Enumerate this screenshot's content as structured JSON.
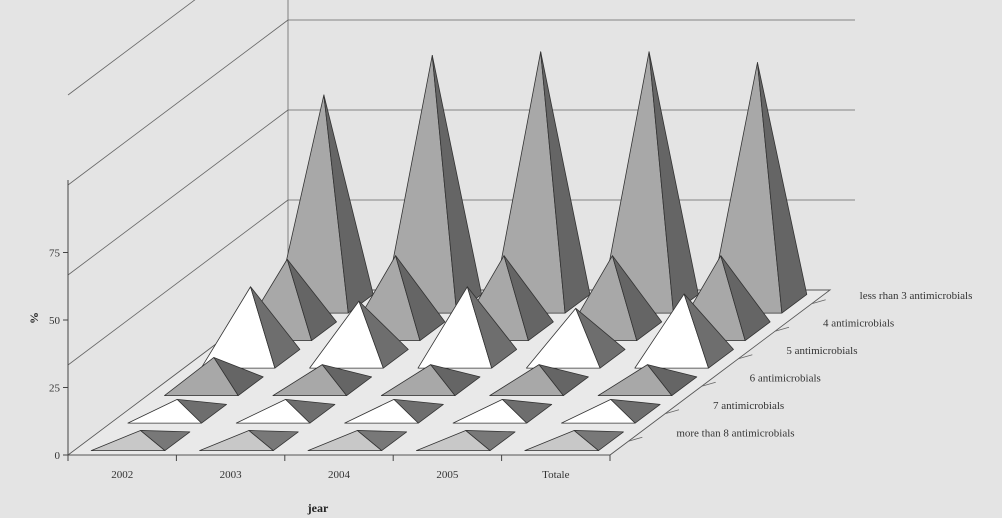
{
  "chart_data": {
    "type": "bar",
    "subtype": "3d-pyramid",
    "ylabel": "%",
    "xlabel": "jear",
    "categories": [
      "2002",
      "2003",
      "2004",
      "2005",
      "Totale"
    ],
    "y_ticks": [
      "0",
      "25",
      "50",
      "75"
    ],
    "ylim": [
      0,
      100
    ],
    "series": [
      {
        "name": "more than 8 antimicrobials",
        "values": [
          3,
          3,
          3,
          3,
          3
        ],
        "color": "#c8c8c8"
      },
      {
        "name": "7 antimicrobials",
        "values": [
          4,
          4,
          4,
          4,
          4
        ],
        "color": "#ffffff"
      },
      {
        "name": "6 antimicrobials",
        "values": [
          8,
          6,
          6,
          6,
          6
        ],
        "color": "#a8a8a8"
      },
      {
        "name": "5 antimicrobials",
        "values": [
          20,
          16,
          20,
          14,
          18
        ],
        "color": "#ffffff"
      },
      {
        "name": "4 antimicrobials",
        "values": [
          20,
          21,
          21,
          21,
          21
        ],
        "color": "#a8a8a8"
      },
      {
        "name": "less rhan 3 antimicrobials",
        "values": [
          58,
          69,
          70,
          70,
          67
        ],
        "color": "#a8a8a8"
      }
    ],
    "grid": true
  }
}
